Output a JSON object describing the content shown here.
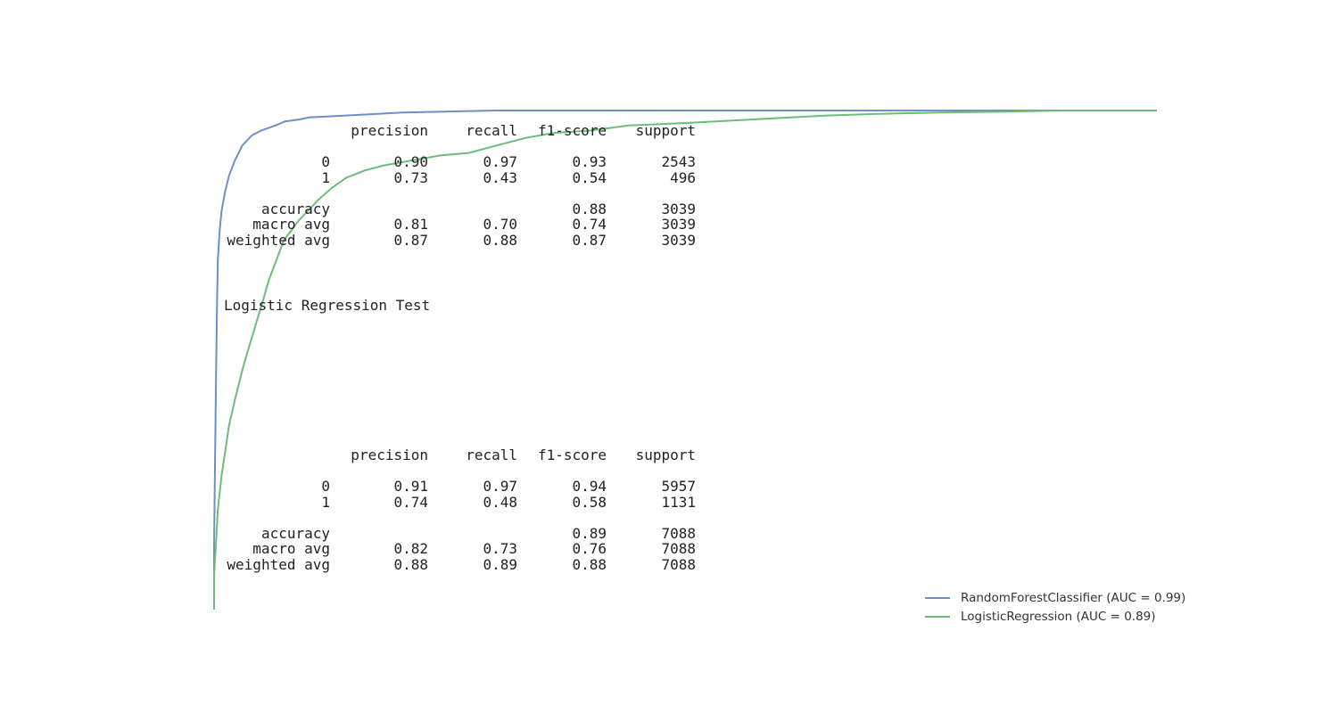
{
  "chart_data": {
    "type": "line",
    "title": "",
    "xlabel": "",
    "ylabel": "",
    "xlim": [
      0,
      1
    ],
    "ylim": [
      0,
      1
    ],
    "grid": false,
    "legend_position": "bottom-right",
    "series": [
      {
        "name": "RandomForestClassifier (AUC = 0.99)",
        "color": "#6d8fca",
        "x": [
          0.0,
          0.0,
          0.001,
          0.002,
          0.003,
          0.004,
          0.006,
          0.008,
          0.012,
          0.016,
          0.022,
          0.03,
          0.04,
          0.05,
          0.065,
          0.075,
          0.09,
          0.1,
          0.12,
          0.14,
          0.16,
          0.2,
          0.25,
          0.3,
          0.4,
          0.6,
          0.8,
          1.0
        ],
        "y": [
          0.0,
          0.13,
          0.3,
          0.45,
          0.6,
          0.7,
          0.76,
          0.8,
          0.84,
          0.87,
          0.9,
          0.93,
          0.95,
          0.96,
          0.97,
          0.978,
          0.982,
          0.986,
          0.988,
          0.99,
          0.992,
          0.996,
          0.998,
          1.0,
          1.0,
          1.0,
          1.0,
          1.0
        ]
      },
      {
        "name": "LogisticRegression (AUC = 0.89)",
        "color": "#6dbd7a",
        "x": [
          0.0,
          0.0,
          0.002,
          0.004,
          0.008,
          0.012,
          0.016,
          0.022,
          0.03,
          0.036,
          0.044,
          0.052,
          0.058,
          0.066,
          0.074,
          0.082,
          0.09,
          0.1,
          0.11,
          0.125,
          0.14,
          0.16,
          0.18,
          0.21,
          0.24,
          0.27,
          0.3,
          0.33,
          0.36,
          0.4,
          0.44,
          0.5,
          0.55,
          0.6,
          0.65,
          0.7,
          0.77,
          0.85,
          0.9,
          1.0
        ],
        "y": [
          0.0,
          0.07,
          0.13,
          0.2,
          0.27,
          0.32,
          0.37,
          0.42,
          0.48,
          0.52,
          0.57,
          0.62,
          0.66,
          0.7,
          0.74,
          0.76,
          0.78,
          0.8,
          0.82,
          0.845,
          0.865,
          0.88,
          0.89,
          0.9,
          0.91,
          0.915,
          0.93,
          0.945,
          0.955,
          0.96,
          0.97,
          0.975,
          0.98,
          0.985,
          0.99,
          0.993,
          0.996,
          0.998,
          1.0,
          1.0
        ]
      }
    ]
  },
  "reports": [
    {
      "header": [
        "",
        "precision",
        "recall",
        "f1-score",
        "support"
      ],
      "rows": [
        [
          "0",
          "0.90",
          "0.97",
          "0.93",
          "2543"
        ],
        [
          "1",
          "0.73",
          "0.43",
          "0.54",
          "496"
        ],
        [
          "",
          "",
          "",
          "",
          ""
        ],
        [
          "accuracy",
          "",
          "",
          "0.88",
          "3039"
        ],
        [
          "macro avg",
          "0.81",
          "0.70",
          "0.74",
          "3039"
        ],
        [
          "weighted avg",
          "0.87",
          "0.88",
          "0.87",
          "3039"
        ]
      ]
    },
    {
      "header": [
        "",
        "precision",
        "recall",
        "f1-score",
        "support"
      ],
      "rows": [
        [
          "0",
          "0.91",
          "0.97",
          "0.94",
          "5957"
        ],
        [
          "1",
          "0.74",
          "0.48",
          "0.58",
          "1131"
        ],
        [
          "",
          "",
          "",
          "",
          ""
        ],
        [
          "accuracy",
          "",
          "",
          "0.89",
          "7088"
        ],
        [
          "macro avg",
          "0.82",
          "0.73",
          "0.76",
          "7088"
        ],
        [
          "weighted avg",
          "0.88",
          "0.89",
          "0.88",
          "7088"
        ]
      ]
    }
  ],
  "caption": "Logistic Regression Test"
}
